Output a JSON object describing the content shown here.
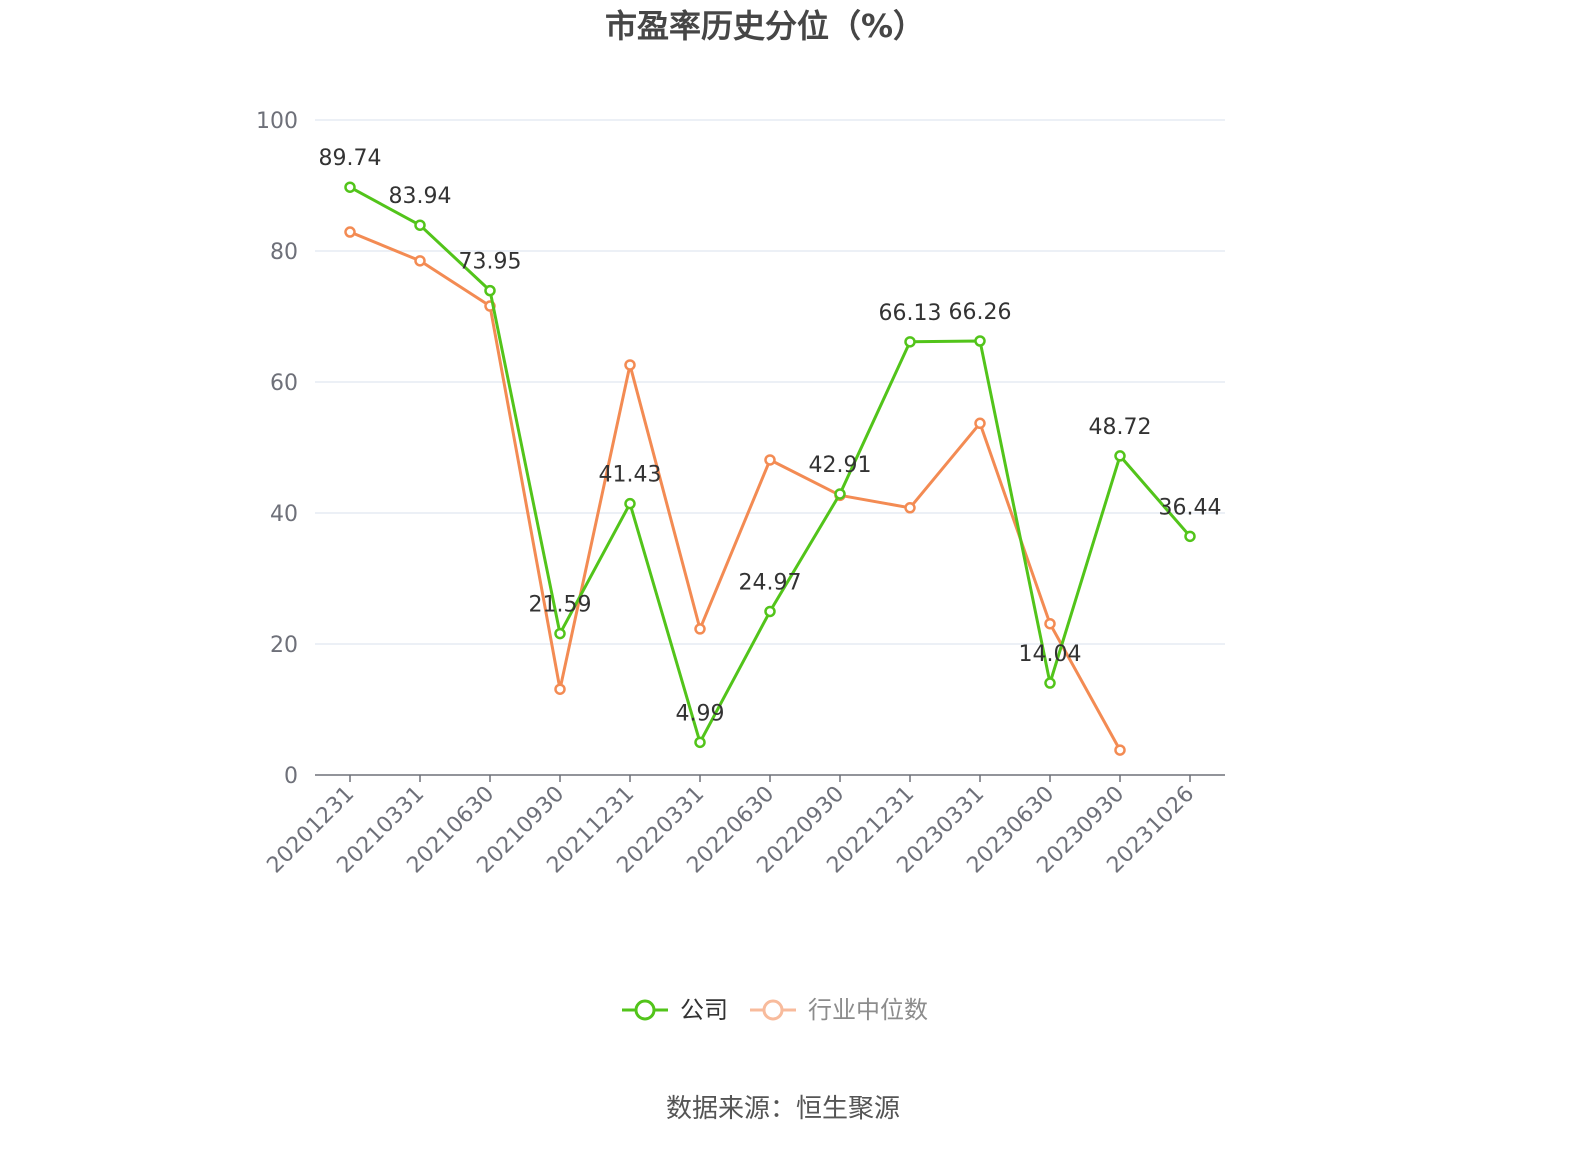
{
  "source": "数据来源：恒生聚源",
  "chart_data": {
    "type": "line",
    "title": "市盈率历史分位（%）",
    "categories": [
      "20201231",
      "20210331",
      "20210630",
      "20210930",
      "20211231",
      "20220331",
      "20220630",
      "20220930",
      "20221231",
      "20230331",
      "20230630",
      "20230930",
      "20231026"
    ],
    "series": [
      {
        "name": "公司",
        "color": "#52c41a",
        "legend_icon_color": "#52c41a",
        "legend_text_color": "#333333",
        "data_labels": true,
        "values": [
          89.74,
          83.94,
          73.95,
          21.59,
          41.43,
          4.99,
          24.97,
          42.91,
          66.13,
          66.26,
          14.04,
          48.72,
          36.44
        ]
      },
      {
        "name": "行业中位数",
        "color": "#f38b53",
        "legend_icon_color": "#f8bb9c",
        "legend_text_color": "#8c8c8c",
        "data_labels": false,
        "values": [
          82.9,
          78.5,
          71.6,
          13.1,
          62.6,
          22.3,
          48.1,
          42.7,
          40.8,
          53.7,
          23.1,
          3.8,
          null
        ]
      }
    ],
    "ylim": [
      0,
      100
    ],
    "yticks": [
      0,
      20,
      40,
      60,
      80,
      100
    ],
    "grid": true,
    "legend": "bottom"
  }
}
